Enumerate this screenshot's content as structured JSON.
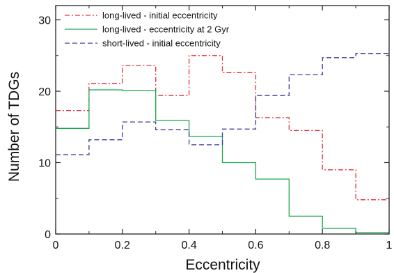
{
  "chart_data": {
    "type": "line",
    "step": true,
    "title": "",
    "xlabel": "Eccentricity",
    "ylabel": "Number of TDGs",
    "xlim": [
      0,
      1
    ],
    "ylim": [
      0,
      32
    ],
    "x_ticks": [
      0,
      0.2,
      0.4,
      0.6,
      0.8,
      1
    ],
    "x_tick_labels": [
      "0",
      "0.2",
      "0.4",
      "0.6",
      "0.8",
      "1"
    ],
    "y_ticks": [
      0,
      10,
      20,
      30
    ],
    "y_tick_labels": [
      "0",
      "10",
      "20",
      "30"
    ],
    "grid": false,
    "legend_position": "top-left",
    "bin_edges": [
      0,
      0.1,
      0.2,
      0.3,
      0.4,
      0.5,
      0.6,
      0.7,
      0.8,
      0.9,
      1.0
    ],
    "series": [
      {
        "name": "long-lived - initial eccentricity",
        "values": [
          17.3,
          21.1,
          23.6,
          19.4,
          25.0,
          22.6,
          16.3,
          14.5,
          9.0,
          4.8
        ],
        "color": "#e0303a",
        "dash": "dashdot"
      },
      {
        "name": "long-lived - eccentricity at 2 Gyr",
        "values": [
          14.8,
          20.2,
          20.1,
          15.9,
          13.7,
          10.0,
          7.7,
          2.5,
          0.8,
          0.2
        ],
        "color": "#1aa84a",
        "dash": "solid"
      },
      {
        "name": "short-lived - initial eccentricity",
        "values": [
          11.1,
          13.2,
          15.7,
          14.6,
          12.5,
          14.7,
          19.4,
          22.3,
          24.7,
          25.3
        ],
        "color": "#3a3a9e",
        "dash": "dashed"
      }
    ]
  }
}
